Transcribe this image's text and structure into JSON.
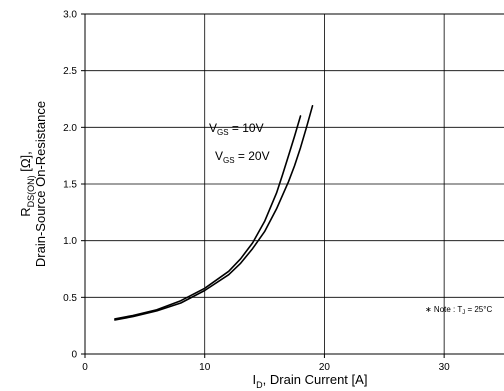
{
  "chart_data": {
    "type": "line",
    "xlabel": {
      "main": "I",
      "sub": "D",
      "rest": ", Drain Current [A]"
    },
    "ylabel": {
      "line1_main": "R",
      "line1_sub": "DS(ON)",
      "line1_rest": " [Ω],",
      "line2": "Drain-Source On-Resistance"
    },
    "xlim": [
      0,
      35
    ],
    "ylim": [
      0,
      3.0
    ],
    "x_ticks": [
      0,
      10,
      20,
      30
    ],
    "y_ticks": [
      0,
      0.5,
      1.0,
      1.5,
      2.0,
      2.5,
      3.0
    ],
    "y_tick_labels": [
      "0",
      "0.5",
      "1.0",
      "1.5",
      "2.0",
      "2.5",
      "3.0"
    ],
    "grid": true,
    "series": [
      {
        "name": {
          "main": "V",
          "sub": "GS",
          "rest": " = 10V"
        },
        "color": "#000000",
        "x": [
          2.5,
          4,
          6,
          8,
          10,
          12,
          13,
          14,
          15,
          16,
          16.5,
          17,
          17.5,
          18
        ],
        "y": [
          0.31,
          0.34,
          0.39,
          0.47,
          0.58,
          0.73,
          0.84,
          0.98,
          1.17,
          1.42,
          1.58,
          1.75,
          1.92,
          2.1
        ]
      },
      {
        "name": {
          "main": "V",
          "sub": "GS",
          "rest": " = 20V"
        },
        "color": "#000000",
        "x": [
          2.5,
          4,
          6,
          8,
          10,
          12,
          13,
          14,
          15,
          16,
          17,
          17.5,
          18,
          18.5,
          19
        ],
        "y": [
          0.3,
          0.33,
          0.38,
          0.45,
          0.56,
          0.7,
          0.8,
          0.93,
          1.08,
          1.28,
          1.52,
          1.66,
          1.82,
          2.0,
          2.19
        ]
      }
    ],
    "annotation": {
      "prefix": "∗ Note : T",
      "sub": "J",
      "rest": " = 25°C"
    }
  }
}
